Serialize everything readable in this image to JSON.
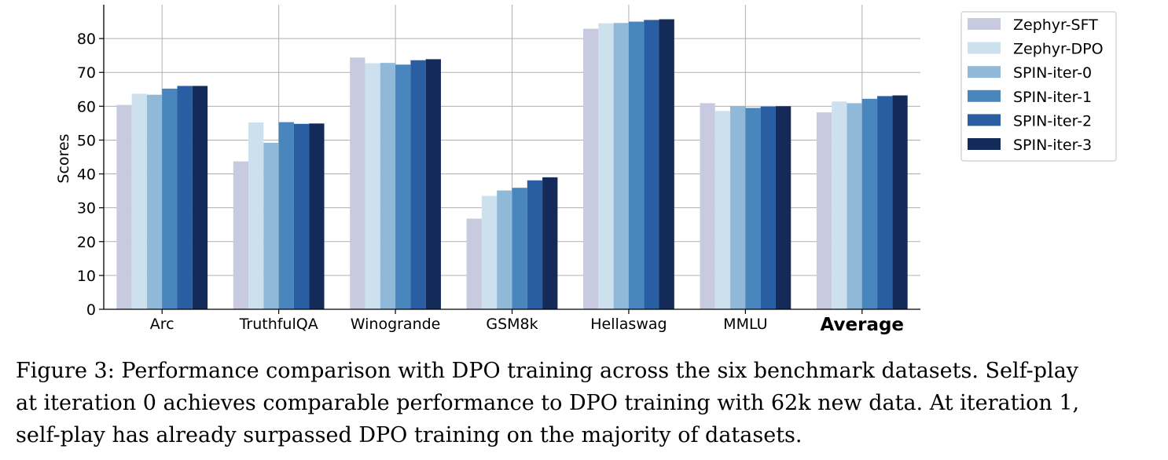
{
  "chart_data": {
    "type": "bar",
    "title": "",
    "xlabel": "",
    "ylabel": "Scores",
    "ylim": [
      0,
      90
    ],
    "yticks": [
      0,
      10,
      20,
      30,
      40,
      50,
      60,
      70,
      80
    ],
    "grid": true,
    "legend_position": "top-right, outside plot",
    "categories": [
      "Arc",
      "TruthfulQA",
      "Winogrande",
      "GSM8k",
      "Hellaswag",
      "MMLU",
      "Average"
    ],
    "series": [
      {
        "name": "Zephyr-SFT",
        "color": "#c8cbe0",
        "values": [
          60.4,
          43.7,
          74.4,
          26.8,
          82.9,
          60.9,
          58.2
        ]
      },
      {
        "name": "Zephyr-DPO",
        "color": "#cde0ed",
        "values": [
          63.7,
          55.2,
          72.7,
          33.5,
          84.5,
          58.6,
          61.4
        ]
      },
      {
        "name": "SPIN-iter-0",
        "color": "#8fb8d9",
        "values": [
          63.4,
          49.2,
          72.8,
          35.1,
          84.6,
          60.1,
          60.9
        ]
      },
      {
        "name": "SPIN-iter-1",
        "color": "#4886bd",
        "values": [
          65.2,
          55.3,
          72.3,
          35.9,
          85.0,
          59.5,
          62.2
        ]
      },
      {
        "name": "SPIN-iter-2",
        "color": "#2a5ea3",
        "values": [
          66.0,
          54.8,
          73.6,
          38.1,
          85.5,
          59.9,
          63.0
        ]
      },
      {
        "name": "SPIN-iter-3",
        "color": "#142a58",
        "values": [
          66.0,
          54.9,
          73.9,
          39.0,
          85.7,
          60.0,
          63.2
        ]
      }
    ]
  },
  "caption": {
    "lines": [
      "Figure 3: Performance comparison with DPO training across the six benchmark datasets. Self-play",
      "at iteration 0 achieves comparable performance to DPO training with 62k new data. At iteration 1,",
      "self-play has already surpassed DPO training on the majority of datasets."
    ]
  }
}
